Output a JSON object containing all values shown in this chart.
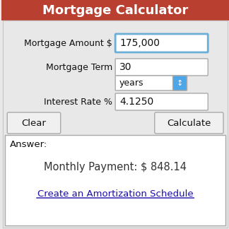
{
  "title": "Mortgage Calculator",
  "title_bg": "#b94030",
  "title_color": "#ffffff",
  "title_fontsize": 13,
  "bg_color": "#e8e8e8",
  "label1": "Mortgage Amount $",
  "value1": "175,000",
  "label2": "Mortgage Term",
  "value2": "30",
  "dropdown_label": "years",
  "label3": "Interest Rate %",
  "value3": "4.1250",
  "btn_clear": "Clear",
  "btn_calculate": "Calculate",
  "answer_label": "Answer:",
  "monthly_payment": "Monthly Payment: $ 848.14",
  "link_text": "Create an Amortization Schedule",
  "link_color": "#1a0dab",
  "input_border_active": "#6baed6",
  "input_border_normal": "#aaaaaa",
  "input_bg": "#ffffff",
  "btn_bg": "#f0f0f0",
  "btn_border": "#aaaaaa",
  "answer_bg": "#ffffff",
  "answer_border": "#aaaaaa"
}
